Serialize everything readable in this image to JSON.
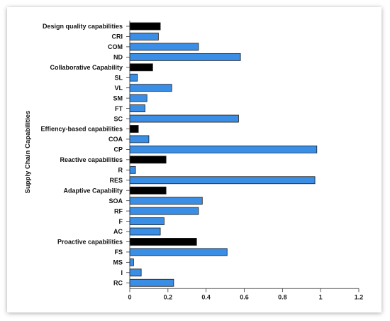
{
  "chart_data": {
    "type": "bar",
    "orientation": "horizontal",
    "title": "",
    "xlabel": "",
    "ylabel": "Supply Chain Capabilities",
    "xlim": [
      0,
      1.2
    ],
    "xticks": [
      "0",
      "0.2",
      "0.4",
      "0.6",
      "0.8",
      "1",
      "1.2"
    ],
    "grid": false,
    "colors": {
      "group": "#000000",
      "item": "#3a8ee6",
      "item_stroke": "#1a1a1a"
    },
    "categories": [
      "Design quality capabilities",
      "CRI",
      "COM",
      "ND",
      "Collaborative Capability",
      "SL",
      "VL",
      "SM",
      "FT",
      "SC",
      "Effiency-based capabilities",
      "COA",
      "CP",
      "Reactive capabilities",
      "R",
      "RES",
      "Adaptive Capability",
      "SOA",
      "RF",
      "F",
      "AC",
      "Proactive capabilities",
      "FS",
      "MS",
      "I",
      "RC"
    ],
    "values": [
      0.16,
      0.15,
      0.36,
      0.58,
      0.12,
      0.04,
      0.22,
      0.09,
      0.08,
      0.57,
      0.045,
      0.1,
      0.98,
      0.19,
      0.03,
      0.97,
      0.19,
      0.38,
      0.36,
      0.18,
      0.16,
      0.35,
      0.51,
      0.02,
      0.06,
      0.23
    ],
    "is_group": [
      true,
      false,
      false,
      false,
      true,
      false,
      false,
      false,
      false,
      false,
      true,
      false,
      false,
      true,
      false,
      false,
      true,
      false,
      false,
      false,
      false,
      true,
      false,
      false,
      false,
      false
    ]
  }
}
